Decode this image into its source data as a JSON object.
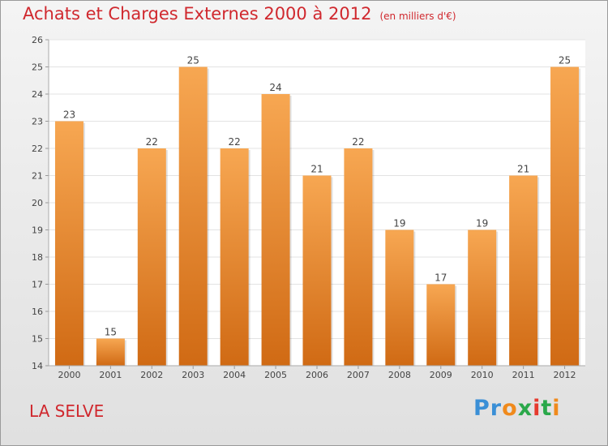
{
  "title": "Achats et Charges Externes 2000 à 2012",
  "subtitle": "(en milliers d'€)",
  "location": "LA SELVE",
  "brand": {
    "letters": [
      "P",
      "r",
      "o",
      "x",
      "i",
      "t",
      "i"
    ],
    "colors": [
      "#3a8fd6",
      "#3a8fd6",
      "#f08a1c",
      "#2aa84a",
      "#e63a2e",
      "#2aa84a",
      "#f08a1c"
    ]
  },
  "colors": {
    "bar_top": "#f7a752",
    "bar_bottom": "#d06a14",
    "title": "#d0282e"
  },
  "chart_data": {
    "type": "bar",
    "categories": [
      "2000",
      "2001",
      "2002",
      "2003",
      "2004",
      "2005",
      "2006",
      "2007",
      "2008",
      "2009",
      "2010",
      "2011",
      "2012"
    ],
    "values": [
      23,
      15,
      22,
      25,
      22,
      24,
      21,
      22,
      19,
      17,
      19,
      21,
      25
    ],
    "value_labels": [
      "23",
      "15",
      "22",
      "25",
      "22",
      "24",
      "21",
      "22",
      "19",
      "17",
      "19",
      "21",
      "25"
    ],
    "ylim": [
      14,
      26
    ],
    "yticks": [
      "14",
      "15",
      "16",
      "17",
      "18",
      "19",
      "20",
      "21",
      "22",
      "23",
      "24",
      "25",
      "26"
    ],
    "grid": true
  }
}
